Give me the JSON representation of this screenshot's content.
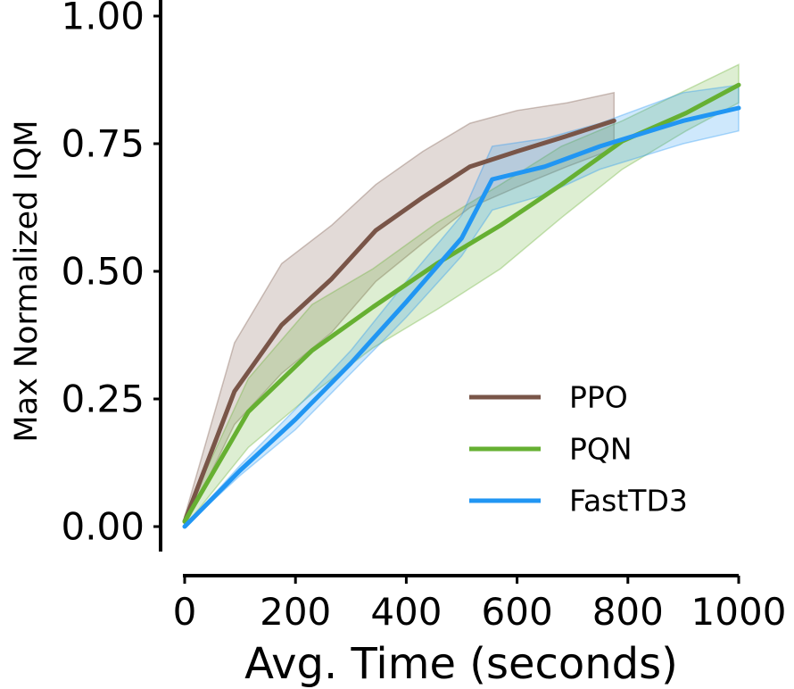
{
  "chart_data": {
    "type": "line",
    "xlabel": "Avg. Time (seconds)",
    "ylabel": "Max Normalized IQM",
    "xlim": [
      0,
      1000
    ],
    "ylim": [
      -0.05,
      1.0
    ],
    "xticks": [
      0,
      200,
      400,
      600,
      800,
      1000
    ],
    "xtick_labels": [
      "0",
      "200",
      "400",
      "600",
      "800",
      "1000"
    ],
    "yticks": [
      0.0,
      0.25,
      0.5,
      0.75,
      1.0
    ],
    "ytick_labels": [
      "0.00",
      "0.25",
      "0.50",
      "0.75",
      "1.00"
    ],
    "grid": false,
    "legend_position": "lower-right",
    "series": [
      {
        "name": "PPO",
        "color": "#795548",
        "x": [
          0,
          90,
          175,
          265,
          345,
          430,
          515,
          600,
          690,
          775
        ],
        "y": [
          0.01,
          0.265,
          0.395,
          0.485,
          0.58,
          0.645,
          0.705,
          0.735,
          0.765,
          0.795
        ],
        "lower": [
          0.0,
          0.2,
          0.3,
          0.38,
          0.48,
          0.555,
          0.625,
          0.665,
          0.705,
          0.74
        ],
        "upper": [
          0.02,
          0.36,
          0.515,
          0.59,
          0.67,
          0.735,
          0.79,
          0.815,
          0.83,
          0.85
        ]
      },
      {
        "name": "PQN",
        "color": "#66b032",
        "x": [
          0,
          115,
          230,
          340,
          455,
          570,
          680,
          790,
          905,
          1000
        ],
        "y": [
          0.01,
          0.225,
          0.345,
          0.43,
          0.515,
          0.59,
          0.67,
          0.755,
          0.81,
          0.865
        ],
        "lower": [
          0.0,
          0.155,
          0.26,
          0.35,
          0.425,
          0.505,
          0.605,
          0.7,
          0.775,
          0.83
        ],
        "upper": [
          0.02,
          0.29,
          0.435,
          0.505,
          0.595,
          0.67,
          0.745,
          0.795,
          0.855,
          0.905
        ]
      },
      {
        "name": "FastTD3",
        "color": "#2196f3",
        "x": [
          0,
          100,
          200,
          300,
          400,
          500,
          555,
          650,
          750,
          900,
          1000
        ],
        "y": [
          0.0,
          0.11,
          0.21,
          0.32,
          0.44,
          0.565,
          0.68,
          0.705,
          0.745,
          0.795,
          0.82
        ],
        "lower": [
          0.0,
          0.1,
          0.19,
          0.3,
          0.41,
          0.53,
          0.62,
          0.65,
          0.7,
          0.75,
          0.775
        ],
        "upper": [
          0.0,
          0.12,
          0.23,
          0.345,
          0.48,
          0.61,
          0.745,
          0.76,
          0.79,
          0.85,
          0.865
        ]
      }
    ]
  }
}
